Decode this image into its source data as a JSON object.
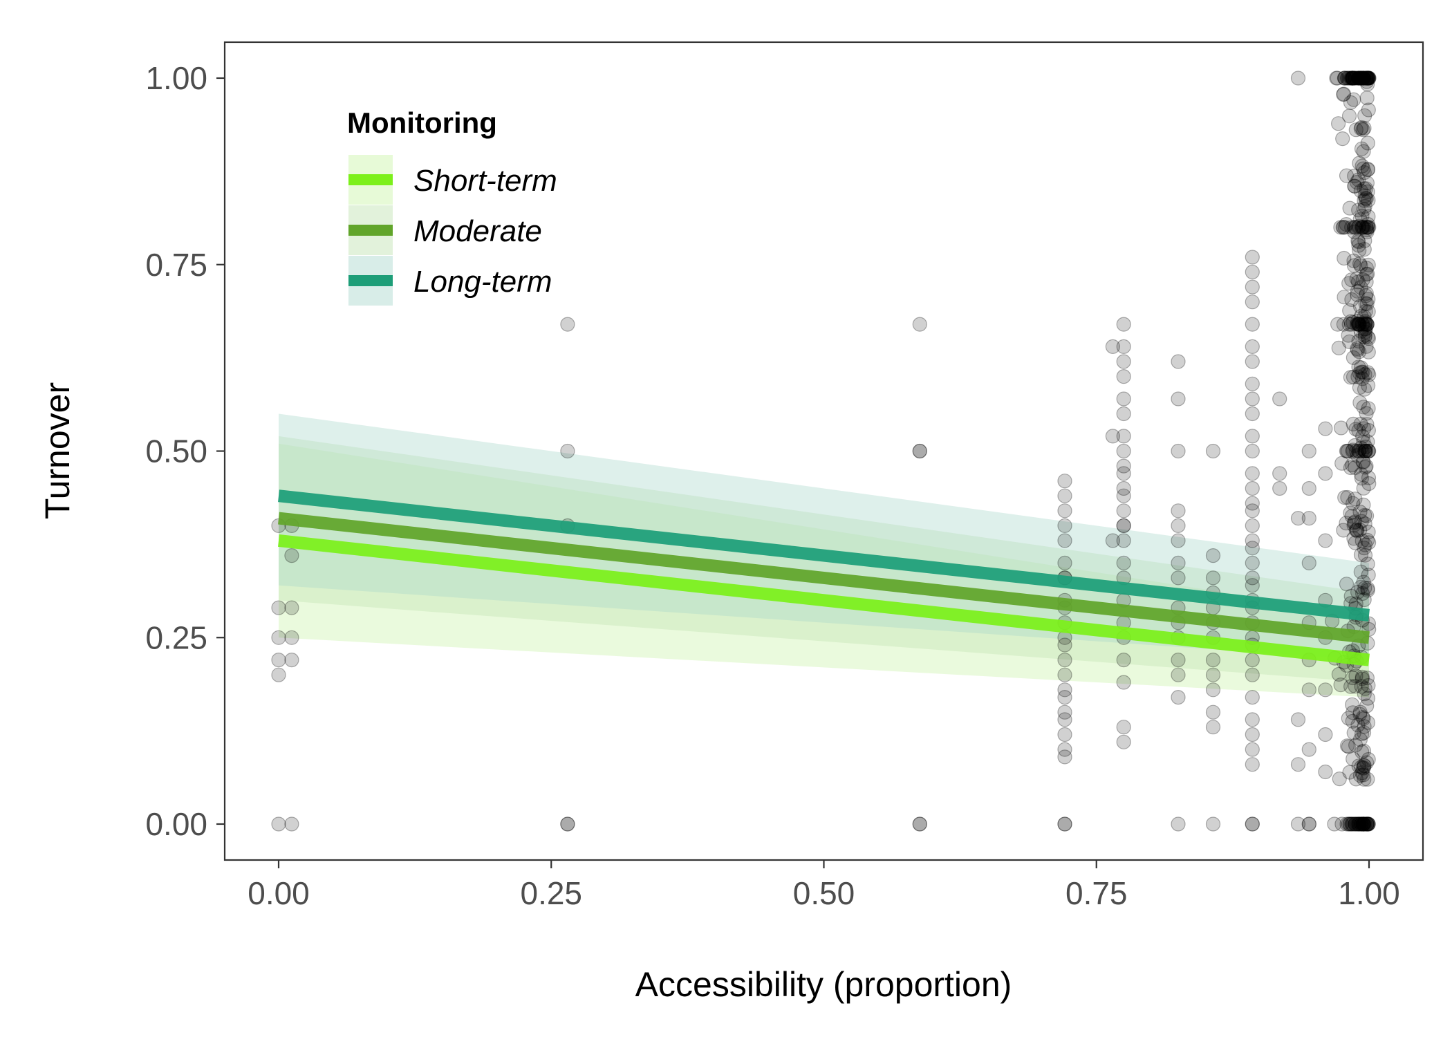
{
  "chart_data": {
    "type": "scatter",
    "xlabel": "Accessibility (proportion)",
    "ylabel": "Turnover",
    "xlim": [
      -0.1,
      2.1
    ],
    "ylim": [
      -0.05,
      1.05
    ],
    "xticks": [
      0.0,
      0.25,
      0.5,
      0.75,
      1.0
    ],
    "xtick_labels": [
      "0.00",
      "0.25",
      "0.50",
      "0.75",
      "1.00"
    ],
    "yticks": [
      0.0,
      0.25,
      0.5,
      0.75,
      1.0
    ],
    "ytick_labels": [
      "0.00",
      "0.25",
      "0.50",
      "0.75",
      "1.00"
    ],
    "grid": false,
    "legend": {
      "title": "Monitoring",
      "placement": "top-left",
      "entries": [
        "Short-term",
        "Moderate",
        "Long-term"
      ]
    },
    "series": [
      {
        "name": "Short-term",
        "color": "#7cf01a",
        "ribbon_color": "#c9f3a6",
        "line": {
          "x": [
            0.0,
            1.0
          ],
          "y": [
            0.38,
            0.22
          ]
        },
        "ribbon": {
          "x": [
            0.0,
            1.0
          ],
          "lower": [
            0.25,
            0.17
          ],
          "upper": [
            0.51,
            0.28
          ]
        }
      },
      {
        "name": "Moderate",
        "color": "#61a52a",
        "ribbon_color": "#bfe2b0",
        "line": {
          "x": [
            0.0,
            1.0
          ],
          "y": [
            0.41,
            0.25
          ]
        },
        "ribbon": {
          "x": [
            0.0,
            1.0
          ],
          "lower": [
            0.3,
            0.19
          ],
          "upper": [
            0.52,
            0.31
          ]
        }
      },
      {
        "name": "Long-term",
        "color": "#1d9e78",
        "ribbon_color": "#a9d8cb",
        "line": {
          "x": [
            0.0,
            1.0
          ],
          "y": [
            0.44,
            0.28
          ]
        },
        "ribbon": {
          "x": [
            0.0,
            1.0
          ],
          "lower": [
            0.32,
            0.22
          ],
          "upper": [
            0.55,
            0.35
          ]
        }
      }
    ],
    "points": {
      "color": "#000000",
      "groups": [
        {
          "x": 0.0,
          "y": [
            0.0,
            0.2,
            0.22,
            0.25,
            0.29,
            0.4
          ]
        },
        {
          "x": 0.012,
          "y": [
            0.0,
            0.22,
            0.25,
            0.29,
            0.36,
            0.4
          ]
        },
        {
          "x": 0.265,
          "y": [
            0.0,
            0.0,
            0.4,
            0.5,
            0.67
          ]
        },
        {
          "x": 0.588,
          "y": [
            0.0,
            0.0,
            0.5,
            0.5,
            0.67
          ]
        },
        {
          "x": 0.721,
          "y": [
            0.0,
            0.0,
            0.09,
            0.1,
            0.12,
            0.14,
            0.15,
            0.17,
            0.18,
            0.2,
            0.22,
            0.24,
            0.25,
            0.27,
            0.29,
            0.3,
            0.33,
            0.33,
            0.35,
            0.38,
            0.4,
            0.42,
            0.44,
            0.46
          ]
        },
        {
          "x": 0.775,
          "y": [
            0.11,
            0.13,
            0.19,
            0.22,
            0.25,
            0.27,
            0.3,
            0.33,
            0.35,
            0.38,
            0.4,
            0.4,
            0.42,
            0.44,
            0.45,
            0.47,
            0.48,
            0.5,
            0.52,
            0.55,
            0.57,
            0.6,
            0.62,
            0.64,
            0.67
          ]
        },
        {
          "x": 0.765,
          "y": [
            0.38,
            0.52,
            0.64
          ]
        },
        {
          "x": 0.825,
          "y": [
            0.0,
            0.17,
            0.2,
            0.22,
            0.25,
            0.27,
            0.29,
            0.33,
            0.35,
            0.38,
            0.4,
            0.42,
            0.5,
            0.57,
            0.62
          ]
        },
        {
          "x": 0.857,
          "y": [
            0.0,
            0.13,
            0.15,
            0.18,
            0.2,
            0.22,
            0.25,
            0.27,
            0.29,
            0.31,
            0.33,
            0.36,
            0.5
          ]
        },
        {
          "x": 0.893,
          "y": [
            0.0,
            0.0,
            0.08,
            0.1,
            0.12,
            0.14,
            0.17,
            0.2,
            0.22,
            0.24,
            0.25,
            0.27,
            0.29,
            0.3,
            0.32,
            0.33,
            0.35,
            0.37,
            0.38,
            0.4,
            0.42,
            0.43,
            0.45,
            0.47,
            0.5,
            0.52,
            0.55,
            0.57,
            0.59,
            0.62,
            0.64,
            0.67,
            0.7,
            0.72,
            0.74,
            0.76
          ]
        },
        {
          "x": 0.918,
          "y": [
            0.45,
            0.47,
            0.57
          ]
        },
        {
          "x": 0.935,
          "y": [
            0.0,
            0.08,
            0.14,
            0.41,
            1.0
          ]
        },
        {
          "x": 0.945,
          "y": [
            0.0,
            0.0,
            0.1,
            0.18,
            0.22,
            0.27,
            0.35,
            0.41,
            0.45,
            0.5
          ]
        },
        {
          "x": 0.96,
          "y": [
            0.07,
            0.12,
            0.18,
            0.25,
            0.3,
            0.38,
            0.47,
            0.53
          ]
        }
      ],
      "dense_band": {
        "x_range": [
          0.965,
          1.0
        ],
        "y_range": [
          0.0,
          1.0
        ],
        "count": 420
      }
    }
  }
}
